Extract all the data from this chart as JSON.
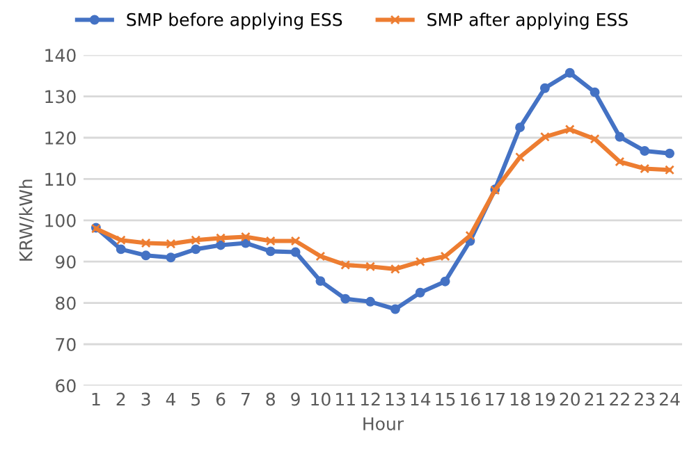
{
  "chart_data": {
    "type": "line",
    "xlabel": "Hour",
    "ylabel": "KRW/kWh",
    "categories": [
      "1",
      "2",
      "3",
      "4",
      "5",
      "6",
      "7",
      "8",
      "9",
      "10",
      "11",
      "12",
      "13",
      "14",
      "15",
      "16",
      "17",
      "18",
      "19",
      "20",
      "21",
      "22",
      "23",
      "24"
    ],
    "series": [
      {
        "name": "SMP before applying ESS",
        "color": "#4472c4",
        "marker": "circle",
        "values": [
          98.2,
          93,
          91.5,
          91,
          93,
          94,
          94.5,
          92.5,
          92.3,
          85.3,
          81,
          80.3,
          78.5,
          82.5,
          85.2,
          95,
          107.5,
          122.5,
          132,
          135.7,
          131,
          120.2,
          116.8,
          116.2
        ]
      },
      {
        "name": "SMP after applying ESS",
        "color": "#ed7d31",
        "marker": "cross",
        "values": [
          98,
          95.2,
          94.5,
          94.3,
          95.2,
          95.7,
          96,
          95,
          95,
          91.3,
          89.2,
          88.8,
          88.2,
          90,
          91.3,
          96.3,
          107.3,
          115.3,
          120.2,
          122,
          119.7,
          114.2,
          112.5,
          112.2
        ]
      }
    ],
    "ylim": [
      60,
      140
    ],
    "yticks": [
      60,
      70,
      80,
      90,
      100,
      110,
      120,
      130,
      140
    ],
    "grid": "y",
    "legend": "top",
    "line_style": "solid"
  }
}
